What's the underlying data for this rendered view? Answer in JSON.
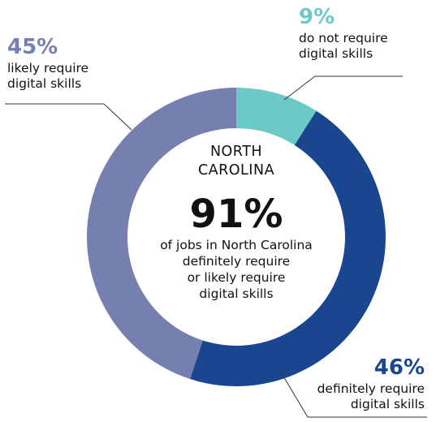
{
  "chart_data": {
    "type": "pie",
    "categories": [
      "do not require digital skills",
      "definitely require digital skills",
      "likely require digital skills"
    ],
    "values": [
      9,
      46,
      45
    ],
    "colors": [
      "#6ccac6",
      "#1a4690",
      "#7580b1"
    ],
    "callouts": [
      {
        "pct": "9%",
        "lines": [
          "do not require",
          "digital skills"
        ]
      },
      {
        "pct": "46%",
        "lines": [
          "definitely require",
          "digital skills"
        ]
      },
      {
        "pct": "45%",
        "lines": [
          "likely require",
          "digital skills"
        ]
      }
    ],
    "center": {
      "region_lines": [
        "NORTH",
        "CAROLINA"
      ],
      "big_value": "91%",
      "caption_lines": [
        "of jobs in North Carolina",
        "definitely require",
        "or likely require",
        "digital skills"
      ]
    }
  }
}
